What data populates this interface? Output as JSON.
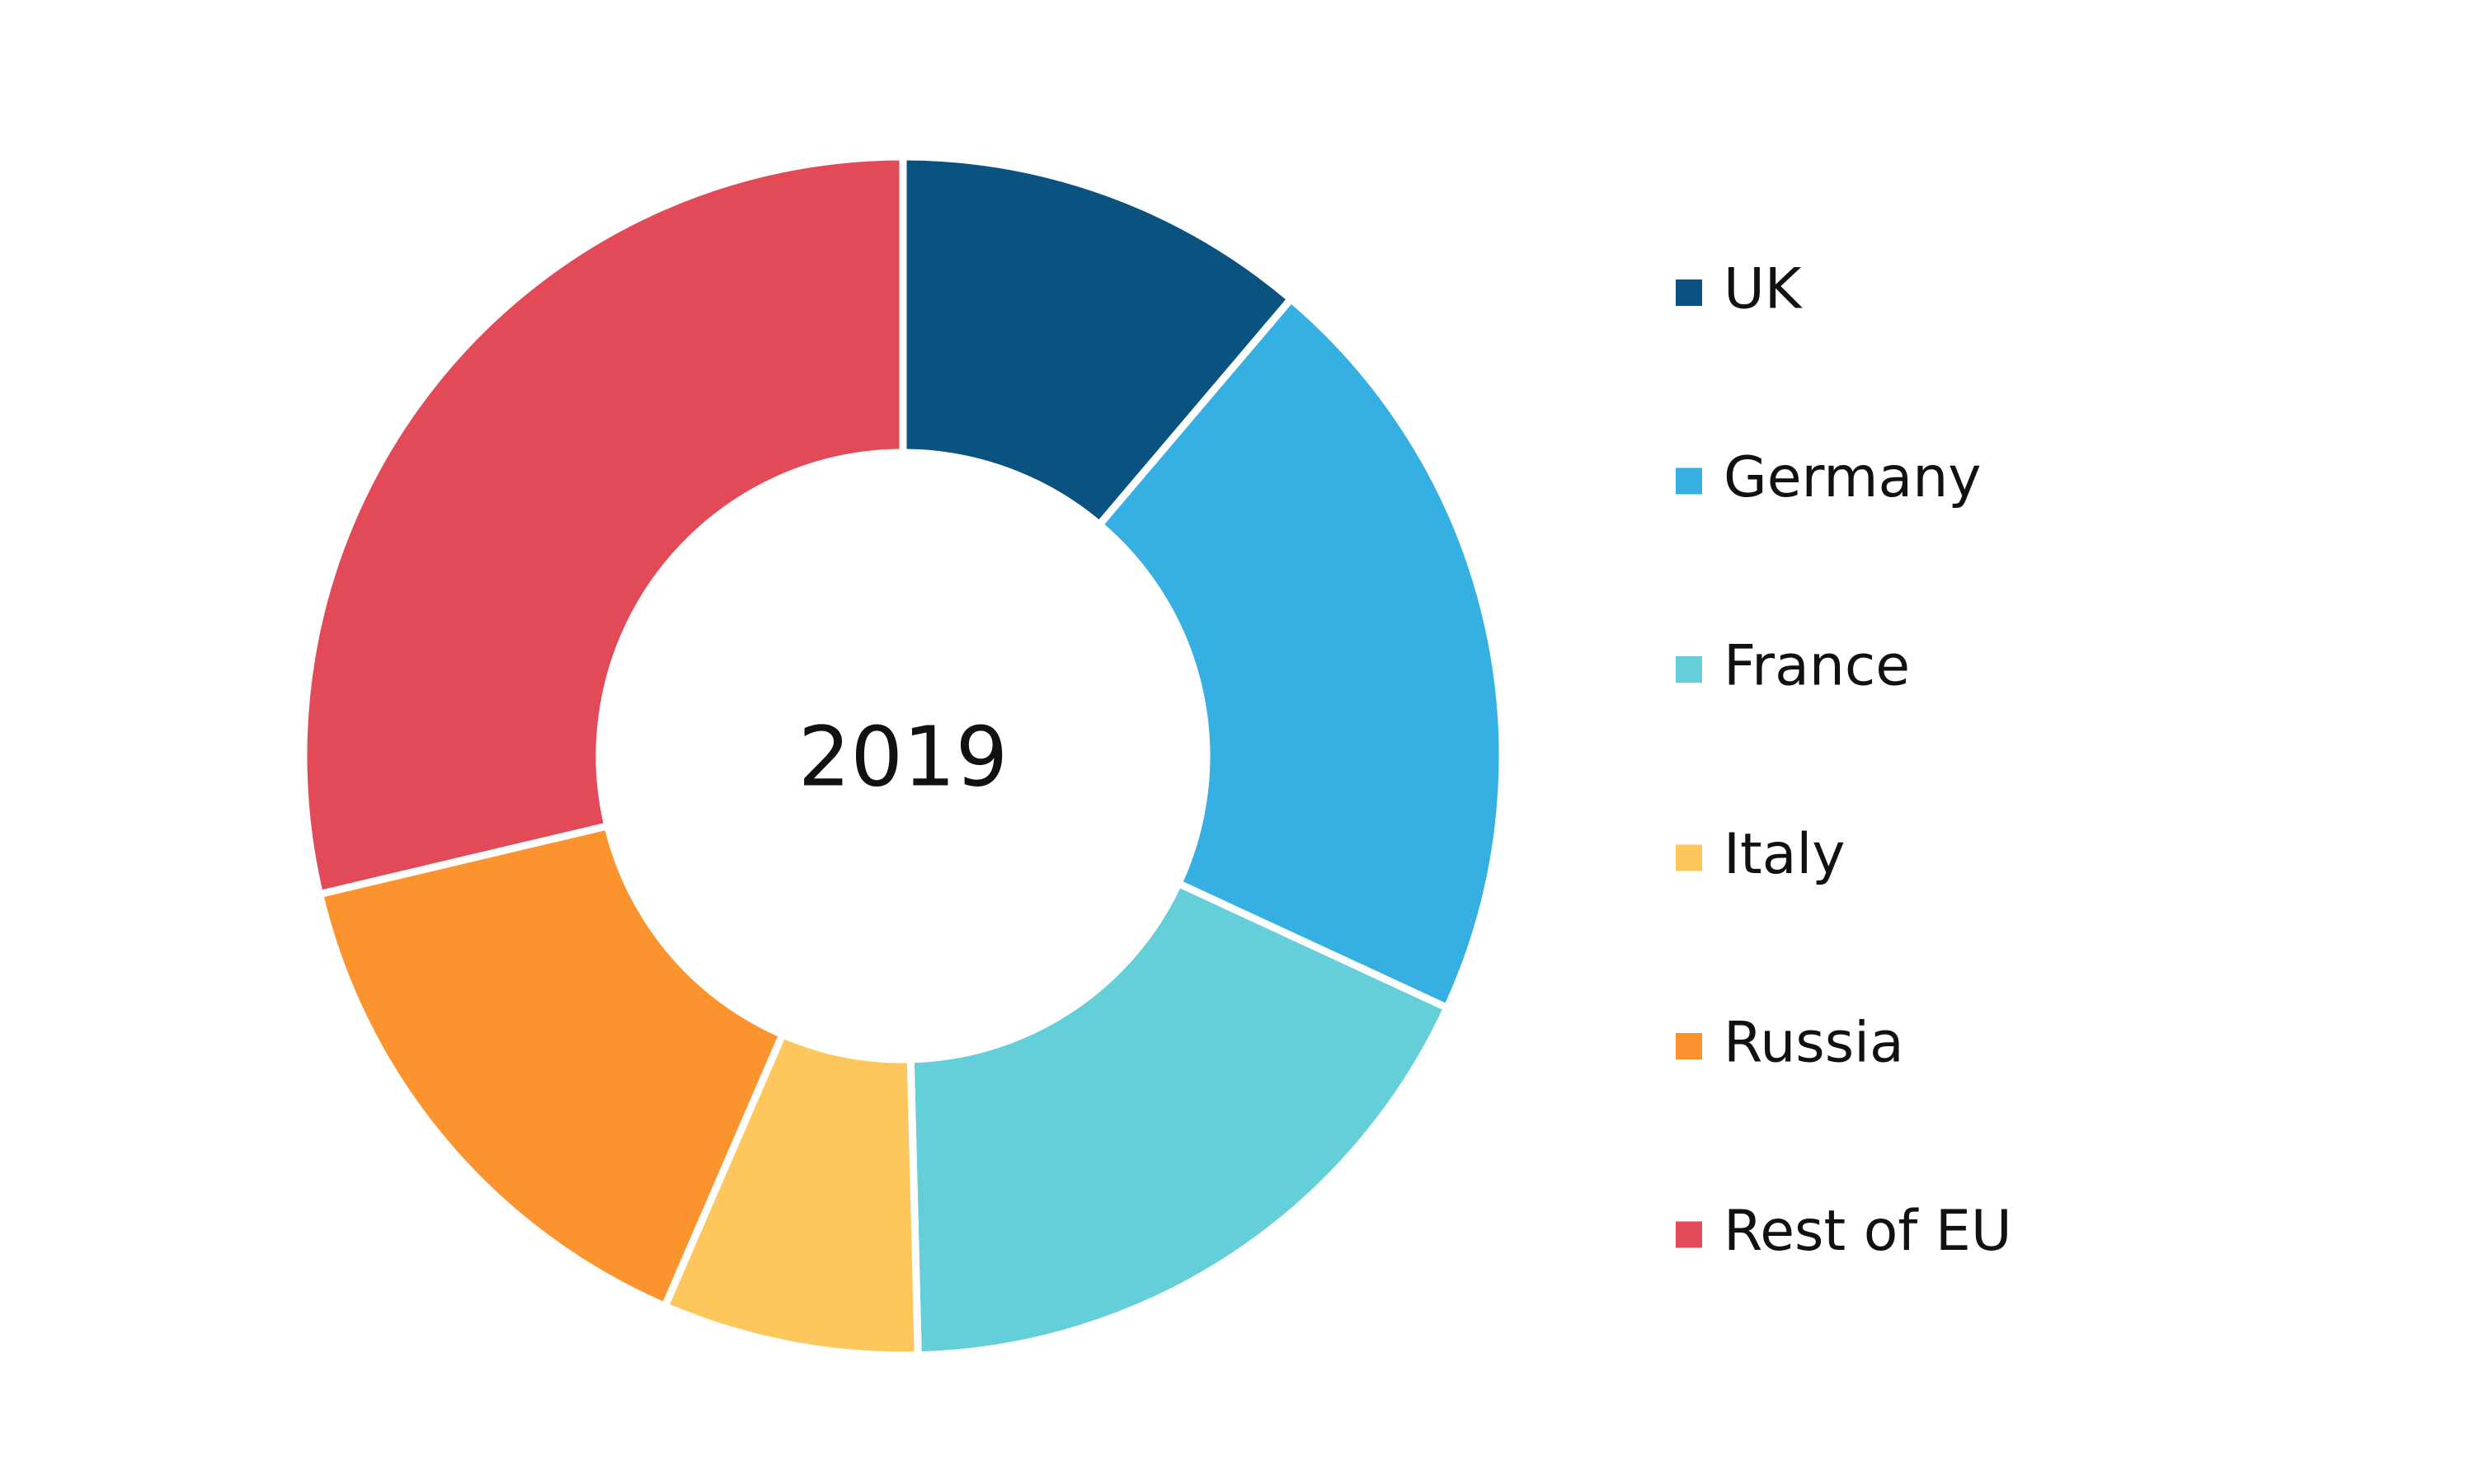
{
  "chart_data": {
    "type": "donut",
    "center_label": "2019",
    "categories": [
      "UK",
      "Germany",
      "France",
      "Italy",
      "Russia",
      "Rest of EU"
    ],
    "values": [
      11.2,
      20.7,
      17.7,
      6.9,
      14.8,
      28.7
    ],
    "colors": [
      "#0a527f",
      "#36afe2",
      "#65cfd9",
      "#fec75d",
      "#fb932e",
      "#e34a58"
    ],
    "legend": "right"
  }
}
